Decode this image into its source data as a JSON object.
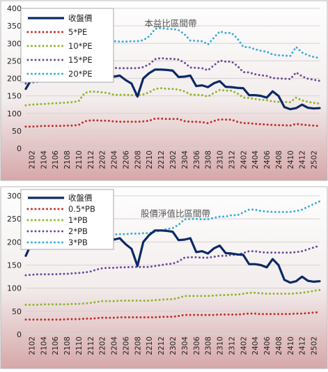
{
  "chart_data": [
    {
      "type": "line",
      "title": "本益比區間帶",
      "xlabel": "",
      "ylabel": "",
      "ylim": [
        0,
        400
      ],
      "yticks": [
        0,
        50,
        100,
        150,
        200,
        250,
        300,
        350,
        400
      ],
      "grid": true,
      "legend_placement": "top-left",
      "x": [
        "2101",
        "2102",
        "2103",
        "2104",
        "2105",
        "2106",
        "2107",
        "2108",
        "2109",
        "2110",
        "2111",
        "2112",
        "2201",
        "2202",
        "2203",
        "2204",
        "2205",
        "2206",
        "2207",
        "2208",
        "2209",
        "2210",
        "2211",
        "2212",
        "2301",
        "2302",
        "2303",
        "2304",
        "2305",
        "2306",
        "2307",
        "2308",
        "2309",
        "2310",
        "2311",
        "2312",
        "2401",
        "2402",
        "2403",
        "2404",
        "2405",
        "2406",
        "2407",
        "2408",
        "2409",
        "2410",
        "2411",
        "2412",
        "2501",
        "2502",
        "2503"
      ],
      "xtick_labels": [
        "2102",
        "2104",
        "2106",
        "2108",
        "2110",
        "2112",
        "2202",
        "2204",
        "2206",
        "2208",
        "2210",
        "2212",
        "2302",
        "2304",
        "2306",
        "2308",
        "2310",
        "2312",
        "2402",
        "2404",
        "2406",
        "2408",
        "2410",
        "2412",
        "2502"
      ],
      "series": [
        {
          "name": "收盤價",
          "color": "#0b2a66",
          "style": "solid",
          "values": [
            170,
            198,
            202,
            208,
            205,
            225,
            232,
            240,
            245,
            248,
            250,
            252,
            253,
            235,
            222,
            205,
            208,
            195,
            185,
            148,
            200,
            215,
            225,
            225,
            224,
            222,
            204,
            205,
            208,
            178,
            180,
            175,
            186,
            192,
            176,
            175,
            173,
            172,
            152,
            152,
            150,
            145,
            163,
            150,
            118,
            112,
            115,
            125,
            116,
            114,
            115
          ]
        },
        {
          "name": "5*PE",
          "color": "#c0302a",
          "style": "dotted",
          "values": [
            62,
            62,
            63,
            64,
            64,
            64,
            64,
            65,
            65,
            67,
            77,
            80,
            80,
            79,
            79,
            77,
            76,
            76,
            76,
            76,
            77,
            79,
            85,
            85,
            84,
            84,
            84,
            78,
            76,
            76,
            75,
            72,
            78,
            83,
            82,
            82,
            76,
            72,
            72,
            70,
            69,
            68,
            67,
            66,
            66,
            65,
            70,
            68,
            66,
            65,
            64
          ]
        },
        {
          "name": "10*PE",
          "color": "#8fb52a",
          "style": "dotted",
          "values": [
            123,
            125,
            126,
            127,
            128,
            129,
            130,
            131,
            132,
            135,
            158,
            162,
            162,
            160,
            158,
            153,
            153,
            153,
            152,
            152,
            154,
            160,
            170,
            172,
            170,
            170,
            168,
            163,
            154,
            153,
            152,
            148,
            158,
            167,
            165,
            165,
            157,
            145,
            144,
            141,
            139,
            138,
            134,
            133,
            133,
            132,
            145,
            137,
            133,
            130,
            128
          ]
        },
        {
          "name": "15*PE",
          "color": "#6b4c9a",
          "style": "dotted",
          "values": [
            185,
            188,
            190,
            192,
            192,
            193,
            195,
            197,
            197,
            202,
            237,
            243,
            243,
            240,
            238,
            230,
            229,
            229,
            229,
            229,
            232,
            240,
            255,
            258,
            256,
            256,
            254,
            245,
            231,
            230,
            229,
            223,
            237,
            251,
            248,
            248,
            236,
            218,
            217,
            212,
            209,
            207,
            201,
            200,
            199,
            198,
            217,
            206,
            199,
            196,
            193
          ]
        },
        {
          "name": "20*PE",
          "color": "#3aaed8",
          "style": "dotted",
          "values": [
            247,
            250,
            253,
            256,
            257,
            258,
            260,
            262,
            263,
            270,
            316,
            323,
            323,
            320,
            318,
            306,
            305,
            305,
            306,
            306,
            309,
            320,
            341,
            344,
            341,
            341,
            338,
            326,
            308,
            307,
            306,
            297,
            316,
            334,
            330,
            330,
            314,
            290,
            289,
            283,
            279,
            276,
            268,
            266,
            265,
            264,
            290,
            274,
            266,
            261,
            258
          ]
        }
      ]
    },
    {
      "type": "line",
      "title": "股價淨值比區間帶",
      "xlabel": "",
      "ylabel": "",
      "ylim": [
        0,
        300
      ],
      "yticks": [
        0,
        50,
        100,
        150,
        200,
        250,
        300
      ],
      "grid": true,
      "legend_placement": "top-left",
      "x": [
        "2101",
        "2102",
        "2103",
        "2104",
        "2105",
        "2106",
        "2107",
        "2108",
        "2109",
        "2110",
        "2111",
        "2112",
        "2201",
        "2202",
        "2203",
        "2204",
        "2205",
        "2206",
        "2207",
        "2208",
        "2209",
        "2210",
        "2211",
        "2212",
        "2301",
        "2302",
        "2303",
        "2304",
        "2305",
        "2306",
        "2307",
        "2308",
        "2309",
        "2310",
        "2311",
        "2312",
        "2401",
        "2402",
        "2403",
        "2404",
        "2405",
        "2406",
        "2407",
        "2408",
        "2409",
        "2410",
        "2411",
        "2412",
        "2501",
        "2502",
        "2503"
      ],
      "xtick_labels": [
        "2102",
        "2104",
        "2106",
        "2108",
        "2110",
        "2112",
        "2202",
        "2204",
        "2206",
        "2208",
        "2210",
        "2212",
        "2302",
        "2304",
        "2306",
        "2308",
        "2310",
        "2312",
        "2402",
        "2404",
        "2406",
        "2408",
        "2410",
        "2412",
        "2502"
      ],
      "series": [
        {
          "name": "收盤價",
          "color": "#0b2a66",
          "style": "solid",
          "values": [
            170,
            198,
            202,
            208,
            205,
            225,
            232,
            240,
            245,
            248,
            250,
            252,
            253,
            235,
            222,
            205,
            208,
            195,
            185,
            148,
            200,
            215,
            225,
            225,
            224,
            222,
            204,
            205,
            208,
            178,
            180,
            175,
            186,
            192,
            176,
            175,
            173,
            172,
            152,
            152,
            150,
            145,
            163,
            150,
            118,
            112,
            115,
            125,
            116,
            114,
            115
          ]
        },
        {
          "name": "0.5*PB",
          "color": "#c0302a",
          "style": "dotted",
          "values": [
            32,
            32,
            32,
            32,
            32,
            32,
            32,
            33,
            33,
            33,
            34,
            34,
            35,
            36,
            36,
            36,
            37,
            37,
            37,
            37,
            37,
            37,
            37,
            38,
            38,
            38,
            40,
            42,
            42,
            42,
            42,
            42,
            42,
            43,
            43,
            43,
            43,
            44,
            45,
            45,
            44,
            44,
            44,
            44,
            44,
            44,
            45,
            45,
            46,
            47,
            48
          ]
        },
        {
          "name": "1*PB",
          "color": "#8fb52a",
          "style": "dotted",
          "values": [
            64,
            64,
            64,
            65,
            65,
            65,
            65,
            65,
            66,
            66,
            67,
            68,
            70,
            72,
            72,
            72,
            73,
            73,
            73,
            73,
            73,
            73,
            74,
            75,
            76,
            76,
            79,
            83,
            83,
            83,
            83,
            83,
            84,
            85,
            85,
            86,
            86,
            88,
            90,
            90,
            89,
            88,
            88,
            88,
            88,
            88,
            89,
            90,
            92,
            94,
            96
          ]
        },
        {
          "name": "2*PB",
          "color": "#6b4c9a",
          "style": "dotted",
          "values": [
            128,
            129,
            130,
            130,
            130,
            130,
            131,
            131,
            132,
            133,
            134,
            136,
            140,
            143,
            144,
            144,
            145,
            145,
            146,
            146,
            146,
            146,
            148,
            150,
            152,
            153,
            158,
            166,
            167,
            167,
            166,
            166,
            168,
            170,
            170,
            172,
            172,
            176,
            180,
            180,
            178,
            177,
            177,
            177,
            177,
            177,
            178,
            180,
            184,
            188,
            192
          ]
        },
        {
          "name": "3*PB",
          "color": "#3aaed8",
          "style": "dotted",
          "values": [
            192,
            193,
            195,
            195,
            196,
            196,
            196,
            197,
            198,
            199,
            202,
            204,
            210,
            215,
            216,
            216,
            217,
            217,
            218,
            218,
            219,
            219,
            222,
            225,
            228,
            230,
            237,
            249,
            250,
            250,
            249,
            249,
            252,
            255,
            255,
            258,
            258,
            264,
            270,
            270,
            267,
            266,
            265,
            265,
            265,
            265,
            267,
            270,
            276,
            282,
            288
          ]
        }
      ]
    }
  ]
}
